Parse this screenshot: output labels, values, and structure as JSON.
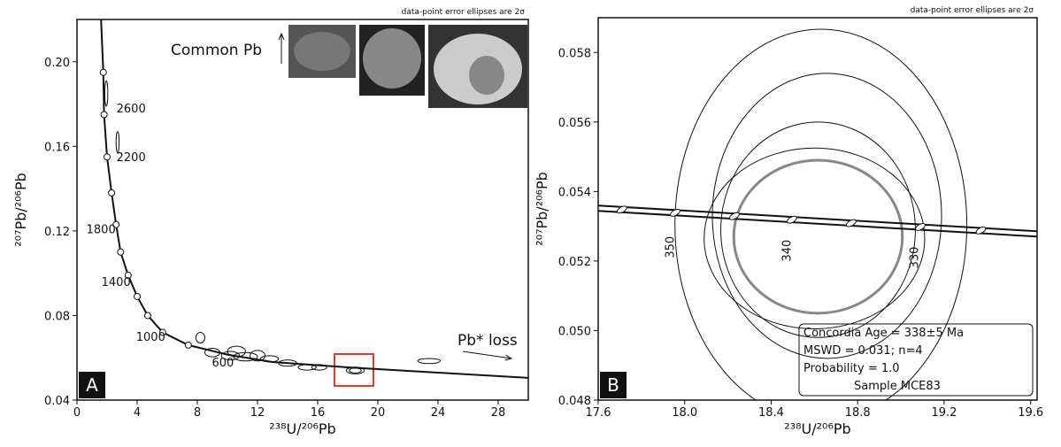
{
  "chart_data": [
    {
      "type": "concordia",
      "note": "data-point error ellipses are 2σ",
      "panel_label": "A",
      "xlabel": "²³⁸U/²⁰⁶Pb",
      "ylabel": "²⁰⁷Pb/²⁰⁶Pb",
      "xlim": [
        0,
        30
      ],
      "xticks": [
        0,
        4,
        8,
        12,
        16,
        20,
        24,
        28
      ],
      "ylim": [
        0.04,
        0.22
      ],
      "yticks": [
        0.04,
        0.08,
        0.12,
        0.16,
        {
          "value": 0.2,
          "label": "0.20"
        }
      ],
      "concordia": {
        "x": [
          1.6,
          1.75,
          1.8,
          2.0,
          2.3,
          2.6,
          2.9,
          3.4,
          4.0,
          4.7,
          5.7,
          7.4,
          10,
          13,
          18,
          24,
          30
        ],
        "y": [
          0.22,
          0.195,
          0.175,
          0.155,
          0.138,
          0.123,
          0.11,
          0.099,
          0.089,
          0.08,
          0.072,
          0.066,
          0.0615,
          0.058,
          0.0555,
          0.053,
          0.0505
        ]
      },
      "age_markers": {
        "x": [
          1.75,
          1.8,
          2.0,
          2.3,
          2.6,
          2.9,
          3.4,
          4.0,
          4.7,
          5.7,
          7.4
        ],
        "y": [
          0.195,
          0.175,
          0.155,
          0.138,
          0.123,
          0.11,
          0.099,
          0.089,
          0.08,
          0.072,
          0.066
        ]
      },
      "age_labels": [
        {
          "text": "2600",
          "x": 3.6,
          "y": 0.176
        },
        {
          "text": "2200",
          "x": 3.6,
          "y": 0.153
        },
        {
          "text": "1800",
          "x": 1.6,
          "y": 0.119
        },
        {
          "text": "1400",
          "x": 2.6,
          "y": 0.094
        },
        {
          "text": "1000",
          "x": 4.9,
          "y": 0.068
        },
        {
          "text": "600",
          "x": 9.7,
          "y": 0.056
        }
      ],
      "ellipses": {
        "x": [
          1.95,
          2.7,
          8.2,
          9.0,
          10.2,
          10.6,
          11.2,
          12.0,
          12.8,
          14.0,
          15.3,
          16.1,
          18.5,
          18.5,
          23.4
        ],
        "y": [
          0.185,
          0.162,
          0.0695,
          0.0625,
          0.061,
          0.063,
          0.0605,
          0.061,
          0.0595,
          0.0575,
          0.0555,
          0.0555,
          0.054,
          0.054,
          0.0585
        ],
        "xerr": [
          0.1,
          0.1,
          0.3,
          0.5,
          0.6,
          0.6,
          0.8,
          0.5,
          0.6,
          0.6,
          0.6,
          0.5,
          0.4,
          0.6,
          0.75
        ],
        "yerr": [
          0.006,
          0.005,
          0.0025,
          0.002,
          0.002,
          0.0025,
          0.002,
          0.0025,
          0.0015,
          0.0015,
          0.0013,
          0.0013,
          0.0012,
          0.0016,
          0.0012
        ]
      },
      "annotations": [
        "Common Pb",
        "Pb* loss"
      ]
    },
    {
      "type": "concordia",
      "note": "data-point error ellipses are 2σ",
      "panel_label": "B",
      "xlabel": "²³⁸U/²⁰⁶Pb",
      "ylabel": "²⁰⁷Pb/²⁰⁶Pb",
      "xlim": [
        17.6,
        19.63
      ],
      "xticks": [
        17.6,
        {
          "value": 18,
          "label": "18.0"
        },
        18.4,
        18.8,
        19.2,
        19.6
      ],
      "ylim": [
        0.048,
        0.059
      ],
      "yticks": [
        0.048,
        {
          "value": 0.05,
          "label": "0.050"
        },
        0.052,
        0.054,
        0.056,
        0.058
      ],
      "concordia": {
        "x": [
          17.6,
          19.63
        ],
        "y": [
          0.05352,
          0.05278
        ]
      },
      "age_markers": {
        "x": [
          17.71,
          17.956,
          18.23,
          18.496,
          18.77,
          19.09,
          19.37
        ],
        "y": [
          0.05348,
          0.05339,
          0.05329,
          0.05319,
          0.05309,
          0.05298,
          0.05288
        ]
      },
      "age_labels": [
        {
          "text": "350",
          "x": 17.95,
          "y": 0.0524
        },
        {
          "text": "340",
          "x": 18.49,
          "y": 0.0523
        },
        {
          "text": "330",
          "x": 19.08,
          "y": 0.0521
        }
      ],
      "ellipses": {
        "x": [
          18.63,
          18.658,
          18.617,
          18.6
        ],
        "y": [
          0.05304,
          0.0533,
          0.0529,
          0.05265
        ],
        "xerr": [
          0.675,
          0.53,
          0.45,
          0.51
        ],
        "yerr": [
          0.00563,
          0.0041,
          0.0031,
          0.0026
        ]
      },
      "mean_ellipse": {
        "x": 18.617,
        "y": 0.0527,
        "xerr": 0.39,
        "yerr": 0.0022,
        "color": "#888888"
      },
      "info": [
        "Concordia Age = 338±5 Ma",
        "MSWD = 0.031; n=4",
        "Probability = 1.0",
        "Sample MCE83"
      ]
    }
  ]
}
